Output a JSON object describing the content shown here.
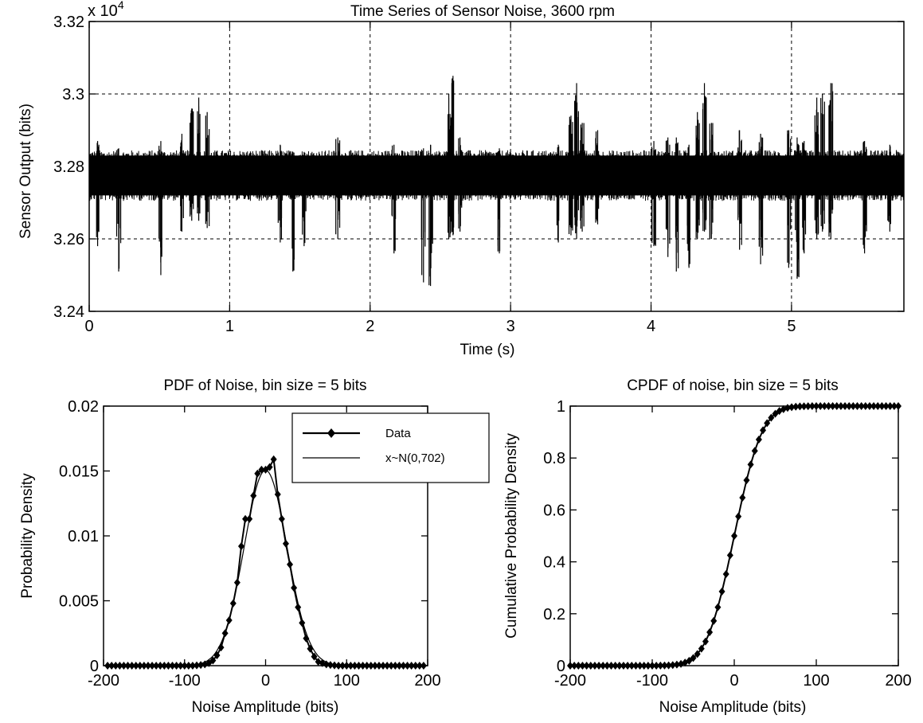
{
  "figure": {
    "background": "#ffffff",
    "line_color": "#000000"
  },
  "chart_data": [
    {
      "id": "timeseries",
      "type": "line",
      "title": "Time Series of Sensor Noise, 3600 rpm",
      "xlabel": "Time (s)",
      "ylabel": "Sensor Output (bits)",
      "y_exponent_label": "x 10",
      "y_exponent_power": "4",
      "xlim": [
        0,
        5.8
      ],
      "ylim": [
        3.24,
        3.32
      ],
      "xticks": [
        0,
        1,
        2,
        3,
        4,
        5
      ],
      "xtick_labels": [
        "0",
        "1",
        "2",
        "3",
        "4",
        "5"
      ],
      "yticks": [
        3.24,
        3.26,
        3.28,
        3.3,
        3.32
      ],
      "ytick_labels": [
        "3.24",
        "3.26",
        "3.28",
        "3.3",
        "3.32"
      ],
      "grid": true,
      "series": [
        {
          "baseline": 3.2775,
          "noise_band": [
            3.2705,
            3.2845
          ],
          "bursts": [
            {
              "t": 0.06,
              "min": 3.258,
              "max": 3.287
            },
            {
              "t": 0.21,
              "min": 3.251,
              "max": 3.285
            },
            {
              "t": 0.51,
              "min": 3.25,
              "max": 3.287
            },
            {
              "t": 0.66,
              "min": 3.262,
              "max": 3.289
            },
            {
              "t": 0.73,
              "min": 3.265,
              "max": 3.296
            },
            {
              "t": 0.78,
              "min": 3.265,
              "max": 3.299
            },
            {
              "t": 0.84,
              "min": 3.263,
              "max": 3.295
            },
            {
              "t": 1.36,
              "min": 3.259,
              "max": 3.286
            },
            {
              "t": 1.45,
              "min": 3.251,
              "max": 3.284
            },
            {
              "t": 1.53,
              "min": 3.258,
              "max": 3.284
            },
            {
              "t": 1.77,
              "min": 3.26,
              "max": 3.288
            },
            {
              "t": 2.17,
              "min": 3.256,
              "max": 3.286
            },
            {
              "t": 2.38,
              "min": 3.248,
              "max": 3.285
            },
            {
              "t": 2.43,
              "min": 3.247,
              "max": 3.286
            },
            {
              "t": 2.56,
              "min": 3.26,
              "max": 3.3
            },
            {
              "t": 2.59,
              "min": 3.261,
              "max": 3.305
            },
            {
              "t": 2.64,
              "min": 3.262,
              "max": 3.288
            },
            {
              "t": 2.92,
              "min": 3.256,
              "max": 3.285
            },
            {
              "t": 3.34,
              "min": 3.259,
              "max": 3.286
            },
            {
              "t": 3.43,
              "min": 3.261,
              "max": 3.294
            },
            {
              "t": 3.47,
              "min": 3.26,
              "max": 3.303
            },
            {
              "t": 3.51,
              "min": 3.262,
              "max": 3.292
            },
            {
              "t": 3.62,
              "min": 3.264,
              "max": 3.29
            },
            {
              "t": 4.02,
              "min": 3.258,
              "max": 3.287
            },
            {
              "t": 4.12,
              "min": 3.255,
              "max": 3.288
            },
            {
              "t": 4.18,
              "min": 3.251,
              "max": 3.288
            },
            {
              "t": 4.27,
              "min": 3.252,
              "max": 3.286
            },
            {
              "t": 4.33,
              "min": 3.26,
              "max": 3.295
            },
            {
              "t": 4.38,
              "min": 3.262,
              "max": 3.303
            },
            {
              "t": 4.43,
              "min": 3.26,
              "max": 3.292
            },
            {
              "t": 4.63,
              "min": 3.257,
              "max": 3.29
            },
            {
              "t": 4.78,
              "min": 3.253,
              "max": 3.289
            },
            {
              "t": 4.98,
              "min": 3.252,
              "max": 3.29
            },
            {
              "t": 5.04,
              "min": 3.249,
              "max": 3.288
            },
            {
              "t": 5.09,
              "min": 3.256,
              "max": 3.287
            },
            {
              "t": 5.18,
              "min": 3.26,
              "max": 3.299
            },
            {
              "t": 5.22,
              "min": 3.262,
              "max": 3.3
            },
            {
              "t": 5.28,
              "min": 3.26,
              "max": 3.303
            },
            {
              "t": 5.52,
              "min": 3.256,
              "max": 3.287
            },
            {
              "t": 5.7,
              "min": 3.262,
              "max": 3.286
            }
          ]
        }
      ]
    },
    {
      "id": "pdf",
      "type": "line",
      "title": "PDF of Noise, bin size = 5 bits",
      "xlabel": "Noise Amplitude (bits)",
      "ylabel": "Probability Density",
      "xlim": [
        -200,
        200
      ],
      "ylim": [
        0,
        0.02
      ],
      "xticks": [
        -200,
        -100,
        0,
        100,
        200
      ],
      "xtick_labels": [
        "-200",
        "-100",
        "0",
        "100",
        "200"
      ],
      "yticks": [
        0,
        0.005,
        0.01,
        0.015,
        0.02
      ],
      "ytick_labels": [
        "0",
        "0.005",
        "0.01",
        "0.015",
        "0.02"
      ],
      "grid": false,
      "legend_position": "top-right",
      "x": [
        -195,
        -190,
        -185,
        -180,
        -175,
        -170,
        -165,
        -160,
        -155,
        -150,
        -145,
        -140,
        -135,
        -130,
        -125,
        -120,
        -115,
        -110,
        -105,
        -100,
        -95,
        -90,
        -85,
        -80,
        -75,
        -70,
        -65,
        -60,
        -55,
        -50,
        -45,
        -40,
        -35,
        -30,
        -25,
        -20,
        -15,
        -10,
        -5,
        0,
        5,
        10,
        15,
        20,
        25,
        30,
        35,
        40,
        45,
        50,
        55,
        60,
        65,
        70,
        75,
        80,
        85,
        90,
        95,
        100,
        105,
        110,
        115,
        120,
        125,
        130,
        135,
        140,
        145,
        150,
        155,
        160,
        165,
        170,
        175,
        180,
        185,
        190,
        195
      ],
      "series": [
        {
          "name": "Data",
          "marker": "diamond",
          "values": [
            0,
            0,
            0,
            0,
            0,
            0,
            0,
            0,
            0,
            0,
            0,
            0,
            0,
            0,
            0,
            0,
            0,
            0,
            0,
            0,
            0,
            0,
            2e-05,
            5e-05,
            0.0001,
            0.0002,
            0.0004,
            0.0008,
            0.0014,
            0.0025,
            0.0035,
            0.0048,
            0.0064,
            0.0092,
            0.0113,
            0.0113,
            0.0131,
            0.0148,
            0.0151,
            0.0151,
            0.0153,
            0.0159,
            0.0132,
            0.0113,
            0.0094,
            0.0078,
            0.006,
            0.0045,
            0.0033,
            0.0021,
            0.0013,
            0.0007,
            0.0003,
            0.0002,
            0.0001,
            5e-05,
            2e-05,
            0,
            0,
            0,
            0,
            0,
            0,
            0,
            0,
            0,
            0,
            0,
            0,
            0,
            0,
            0,
            0,
            0,
            0,
            0,
            0,
            0,
            0
          ]
        },
        {
          "name": "x~N(0,702)",
          "marker": "none",
          "mean": 0,
          "variance": 702
        }
      ]
    },
    {
      "id": "cpdf",
      "type": "line",
      "title": "CPDF of noise, bin size = 5 bits",
      "xlabel": "Noise Amplitude (bits)",
      "ylabel": "Cumulative Probability Density",
      "xlim": [
        -200,
        200
      ],
      "ylim": [
        0,
        1
      ],
      "xticks": [
        -200,
        -100,
        0,
        100,
        200
      ],
      "xtick_labels": [
        "-200",
        "-100",
        "0",
        "100",
        "200"
      ],
      "yticks": [
        0,
        0.2,
        0.4,
        0.6,
        0.8,
        1
      ],
      "ytick_labels": [
        "0",
        "0.2",
        "0.4",
        "0.6",
        "0.8",
        "1"
      ],
      "grid": false,
      "series": [
        {
          "marker": "diamond",
          "mean": 0,
          "variance": 702,
          "x_start": -200,
          "x_end": 200,
          "x_step": 5
        }
      ]
    }
  ]
}
